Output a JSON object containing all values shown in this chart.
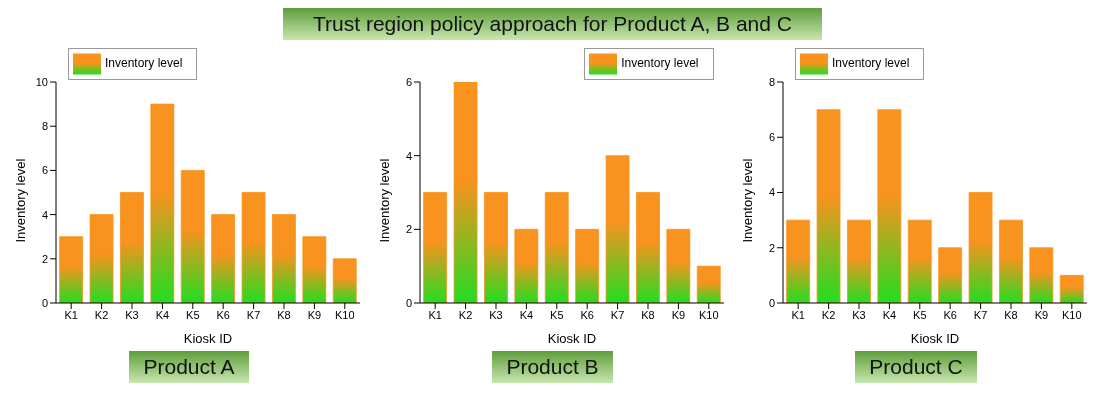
{
  "chart_data": [
    {
      "type": "other",
      "title": "Trust region policy approach for Product A, B and C"
    },
    {
      "type": "bar",
      "subtitle": "Product A",
      "xlabel": "Kiosk ID",
      "ylabel": "Inventory level",
      "categories": [
        "K1",
        "K2",
        "K3",
        "K4",
        "K5",
        "K6",
        "K7",
        "K8",
        "K9",
        "K10"
      ],
      "series": [
        {
          "name": "Inventory level",
          "color": "#f7931e",
          "values": [
            3,
            4,
            5,
            9,
            6,
            4,
            5,
            4,
            3,
            2
          ]
        }
      ],
      "ylim": [
        0,
        10
      ],
      "yticks": [
        0,
        2,
        4,
        6,
        8,
        10
      ],
      "legend": "top left"
    },
    {
      "type": "bar",
      "subtitle": "Product B",
      "xlabel": "Kiosk ID",
      "ylabel": "Inventory level",
      "categories": [
        "K1",
        "K2",
        "K3",
        "K4",
        "K5",
        "K6",
        "K7",
        "K8",
        "K9",
        "K10"
      ],
      "series": [
        {
          "name": "Inventory level",
          "color": "#f7931e",
          "values": [
            3,
            6,
            3,
            2,
            3,
            2,
            4,
            3,
            2,
            1
          ]
        }
      ],
      "ylim": [
        0,
        6
      ],
      "yticks": [
        0,
        2,
        4,
        6
      ],
      "legend": "top right"
    },
    {
      "type": "bar",
      "subtitle": "Product C",
      "xlabel": "Kiosk ID",
      "ylabel": "Inventory level",
      "categories": [
        "K1",
        "K2",
        "K3",
        "K4",
        "K5",
        "K6",
        "K7",
        "K8",
        "K9",
        "K10"
      ],
      "series": [
        {
          "name": "Inventory level",
          "color": "#f7931e",
          "values": [
            3,
            7,
            3,
            7,
            3,
            2,
            4,
            3,
            2,
            1
          ]
        }
      ],
      "ylim": [
        0,
        8
      ],
      "yticks": [
        0,
        2,
        4,
        6,
        8
      ],
      "legend": "top left"
    }
  ]
}
